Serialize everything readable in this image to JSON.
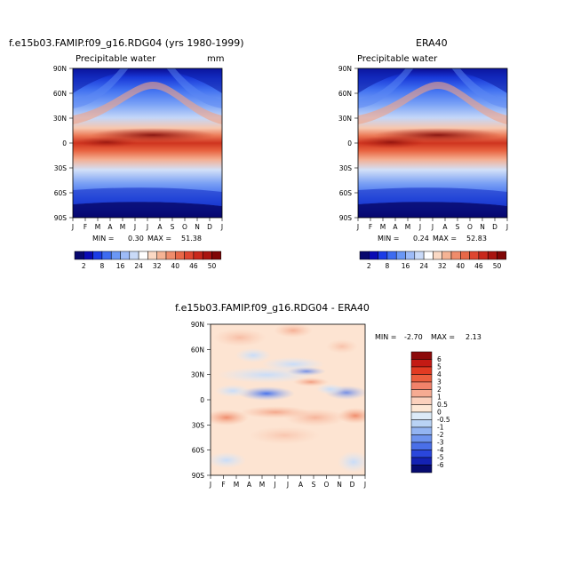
{
  "months": [
    "J",
    "F",
    "M",
    "A",
    "M",
    "J",
    "J",
    "A",
    "S",
    "O",
    "N",
    "D",
    "J"
  ],
  "lat_ticks": [
    "90N",
    "60N",
    "30N",
    "0",
    "30S",
    "60S",
    "90S"
  ],
  "panels": [
    {
      "title": "f.e15b03.FAMIP.f09_g16.RDG04 (yrs 1980-1999)",
      "subtitle": "Precipitable water",
      "units": "mm",
      "min_label": "MIN =",
      "min": "0.30",
      "max_label": "MAX =",
      "max": "51.38"
    },
    {
      "title": "ERA40",
      "subtitle": "Precipitable water",
      "units": "",
      "min_label": "MIN =",
      "min": "0.24",
      "max_label": "MAX =",
      "max": "52.83"
    },
    {
      "title": "f.e15b03.FAMIP.f09_g16.RDG04 - ERA40",
      "subtitle": "",
      "units": "",
      "min_label": "MIN =",
      "min": "-2.70",
      "max_label": "MAX =",
      "max": "2.13"
    }
  ],
  "colorbar_abs": {
    "labels": [
      "2",
      "8",
      "16",
      "24",
      "32",
      "40",
      "46",
      "50"
    ],
    "colors": [
      "#08086e",
      "#0a0ab4",
      "#1b3be6",
      "#3d6bf0",
      "#6a97f5",
      "#9dbbf7",
      "#c9daf8",
      "#ffffff",
      "#fbd9c4",
      "#f5b394",
      "#ef8c6b",
      "#e86848",
      "#de4630",
      "#c9281c",
      "#a91410",
      "#800606"
    ]
  },
  "colorbar_diff": {
    "labels": [
      "6",
      "5",
      "4",
      "3",
      "2",
      "1",
      "0.5",
      "0",
      "-0.5",
      "-1",
      "-2",
      "-3",
      "-4",
      "-5",
      "-6"
    ],
    "colors": [
      "#8c0a0a",
      "#c41a14",
      "#e23a22",
      "#ec5e3e",
      "#f2826a",
      "#f6ab92",
      "#fbd1bd",
      "#fde8d6",
      "#dceaf8",
      "#b9d3f5",
      "#93b4f2",
      "#6e93ee",
      "#4a6fe8",
      "#2a46dc",
      "#1422b4",
      "#070b70"
    ]
  },
  "chart_data": [
    {
      "type": "heatmap",
      "title": "f.e15b03.FAMIP.f09_g16.RDG04 (yrs 1980-1999)",
      "subtitle": "Precipitable water",
      "units": "mm",
      "xlabel": "",
      "ylabel": "",
      "x_categories": [
        "J",
        "F",
        "M",
        "A",
        "M",
        "J",
        "J",
        "A",
        "S",
        "O",
        "N",
        "D",
        "J"
      ],
      "y_range": [
        -90,
        90
      ],
      "y_ticks": [
        "90N",
        "60N",
        "30N",
        "0",
        "30S",
        "60S",
        "90S"
      ],
      "min": 0.3,
      "max": 51.38,
      "equator_peak_month": "Aug",
      "equator_value": 48
    },
    {
      "type": "heatmap",
      "title": "ERA40",
      "subtitle": "Precipitable water",
      "xlabel": "",
      "ylabel": "",
      "x_categories": [
        "J",
        "F",
        "M",
        "A",
        "M",
        "J",
        "J",
        "A",
        "S",
        "O",
        "N",
        "D",
        "J"
      ],
      "y_range": [
        -90,
        90
      ],
      "y_ticks": [
        "90N",
        "60N",
        "30N",
        "0",
        "30S",
        "60S",
        "90S"
      ],
      "min": 0.24,
      "max": 52.83,
      "equator_peak_month": "Aug",
      "equator_value": 49
    },
    {
      "type": "heatmap",
      "title": "f.e15b03.FAMIP.f09_g16.RDG04 - ERA40",
      "xlabel": "",
      "ylabel": "",
      "x_categories": [
        "J",
        "F",
        "M",
        "A",
        "M",
        "J",
        "J",
        "A",
        "S",
        "O",
        "N",
        "D",
        "J"
      ],
      "y_range": [
        -90,
        90
      ],
      "y_ticks": [
        "90N",
        "60N",
        "30N",
        "0",
        "30S",
        "60S",
        "90S"
      ],
      "min": -2.7,
      "max": 2.13
    }
  ]
}
